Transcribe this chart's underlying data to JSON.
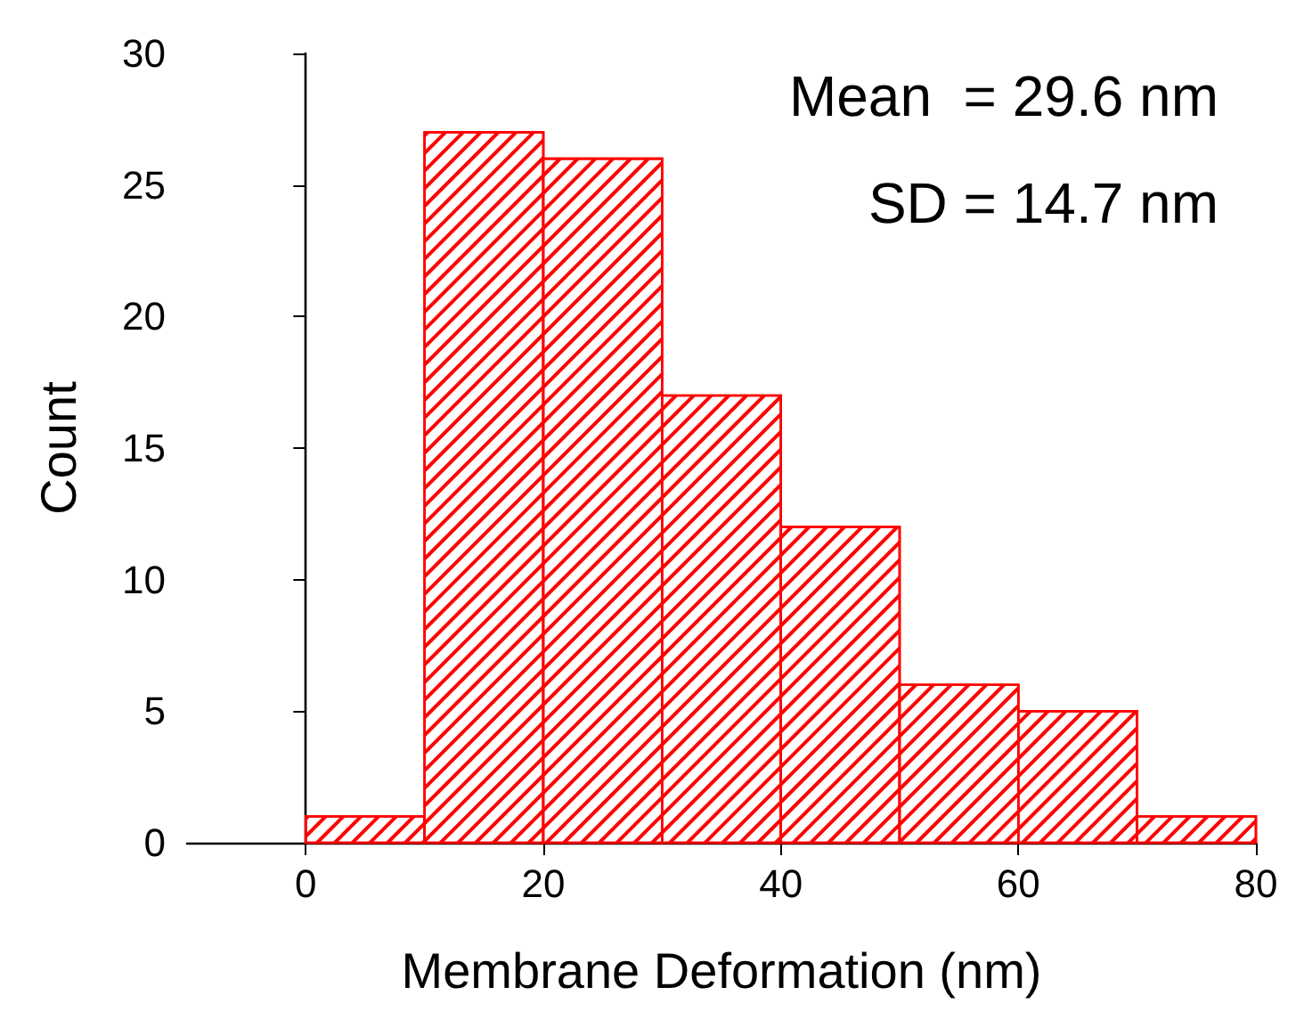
{
  "chart_data": {
    "type": "histogram",
    "xlabel": "Membrane Deformation (nm)",
    "ylabel": "Count",
    "bins": [
      0,
      10,
      20,
      30,
      40,
      50,
      60,
      70,
      80
    ],
    "values": [
      1,
      27,
      26,
      17,
      12,
      6,
      5,
      1
    ],
    "color": "#ff0000",
    "xlim": [
      -10,
      80
    ],
    "xticks": [
      0,
      20,
      40,
      60,
      80
    ],
    "ylim": [
      0,
      30
    ],
    "yticks": [
      0,
      5,
      10,
      15,
      20,
      25,
      30
    ],
    "annotations": [
      "Mean  = 29.6 nm",
      "SD = 14.7 nm"
    ]
  }
}
